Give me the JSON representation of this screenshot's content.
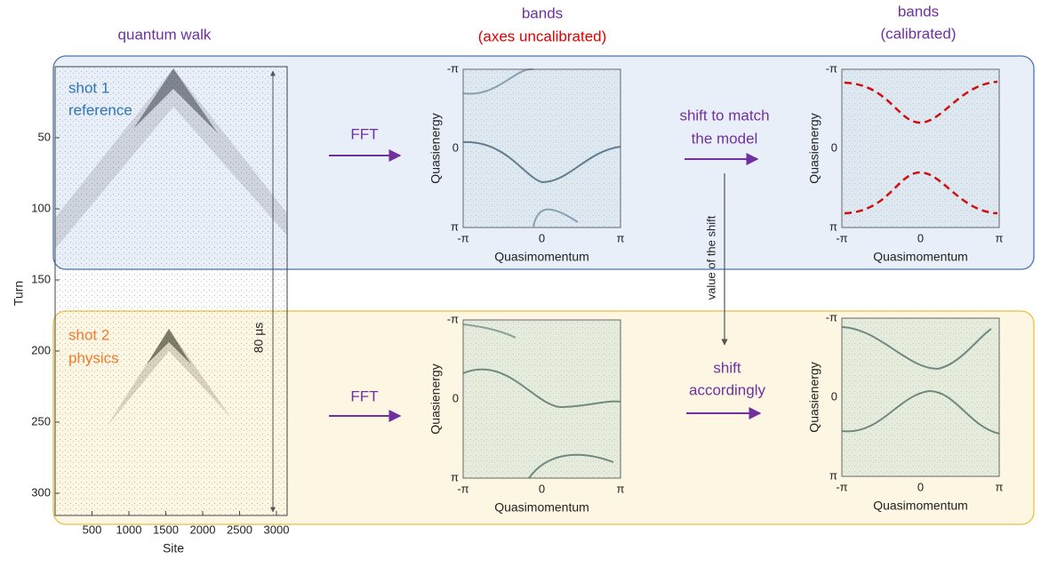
{
  "headers": {
    "walk": "quantum walk",
    "bands_raw": {
      "line1": "bands",
      "line2": "(axes uncalibrated)"
    },
    "bands_cal": {
      "line1": "bands",
      "line2": "(calibrated)"
    }
  },
  "shots": [
    {
      "line1": "shot 1",
      "line2": "reference"
    },
    {
      "line1": "shot 2",
      "line2": "physics"
    }
  ],
  "walk_plot": {
    "ylabel": "Turn",
    "xlabel": "Site",
    "yticks": [
      50,
      100,
      150,
      200,
      250,
      300
    ],
    "xticks": [
      500,
      1000,
      1500,
      2000,
      2500,
      3000
    ],
    "duration": "80 µs"
  },
  "fft": [
    "FFT",
    "FFT"
  ],
  "steps": {
    "match": {
      "line1": "shift to match",
      "line2": "the model"
    },
    "apply": {
      "line1": "shift",
      "line2": "accordingly"
    },
    "transfer": "value of the shift"
  },
  "band_axes": {
    "ylabel": "Quasienergy",
    "xlabel": "Quasimomentum",
    "yticks": [
      "-π",
      "0",
      "π"
    ],
    "xticks": [
      "-π",
      "0",
      "π"
    ]
  }
}
